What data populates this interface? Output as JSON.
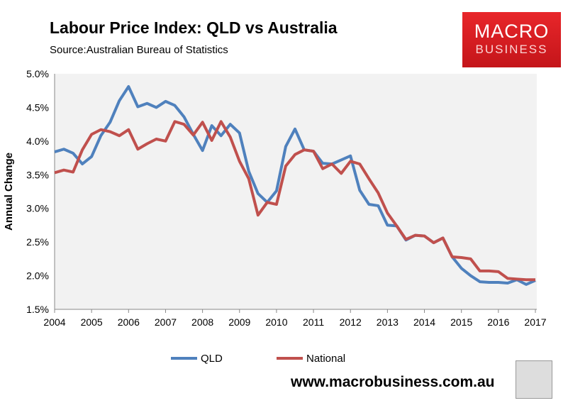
{
  "header": {
    "title": "Labour Price Index: QLD vs Australia",
    "source": "Source:Australian Bureau of Statistics"
  },
  "logo": {
    "line1": "MACRO",
    "line2": "BUSINESS"
  },
  "footer": {
    "url": "www.macrobusiness.com.au",
    "icon": "wolf-icon"
  },
  "chart_data": {
    "type": "line",
    "title": "Labour Price Index: QLD vs Australia",
    "xlabel": "",
    "ylabel": "Annual Change",
    "ylim": [
      1.5,
      5.0
    ],
    "xlim": [
      2004,
      2017
    ],
    "yticks": [
      "1.5%",
      "2.0%",
      "2.5%",
      "3.0%",
      "3.5%",
      "4.0%",
      "4.5%",
      "5.0%"
    ],
    "xticks": [
      "2004",
      "2005",
      "2006",
      "2007",
      "2008",
      "2009",
      "2010",
      "2011",
      "2012",
      "2013",
      "2014",
      "2015",
      "2016",
      "2017"
    ],
    "grid": false,
    "legend": "bottom",
    "x_start": 2004,
    "x_step": 0.25,
    "series": [
      {
        "name": "QLD",
        "color": "#4f81bd",
        "values": [
          3.84,
          3.88,
          3.82,
          3.66,
          3.77,
          4.08,
          4.28,
          4.6,
          4.81,
          4.51,
          4.56,
          4.5,
          4.59,
          4.53,
          4.36,
          4.1,
          3.86,
          4.23,
          4.08,
          4.25,
          4.12,
          3.55,
          3.22,
          3.09,
          3.26,
          3.92,
          4.18,
          3.87,
          3.85,
          3.67,
          3.66,
          3.72,
          3.78,
          3.27,
          3.06,
          3.04,
          2.75,
          2.74,
          2.53,
          2.6,
          2.59,
          2.49,
          2.56,
          2.28,
          2.11,
          2.0,
          1.91,
          1.9,
          1.9,
          1.89,
          1.94,
          1.87,
          1.93
        ]
      },
      {
        "name": "National",
        "color": "#c0504d",
        "values": [
          3.53,
          3.57,
          3.54,
          3.87,
          4.1,
          4.17,
          4.14,
          4.08,
          4.17,
          3.88,
          3.96,
          4.03,
          4.0,
          4.29,
          4.25,
          4.09,
          4.28,
          4.01,
          4.29,
          4.06,
          3.7,
          3.44,
          2.9,
          3.09,
          3.06,
          3.63,
          3.8,
          3.87,
          3.85,
          3.59,
          3.66,
          3.52,
          3.7,
          3.66,
          3.44,
          3.23,
          2.93,
          2.74,
          2.54,
          2.6,
          2.59,
          2.49,
          2.56,
          2.28,
          2.27,
          2.25,
          2.07,
          2.07,
          2.06,
          1.96,
          1.95,
          1.94,
          1.94
        ]
      }
    ]
  }
}
